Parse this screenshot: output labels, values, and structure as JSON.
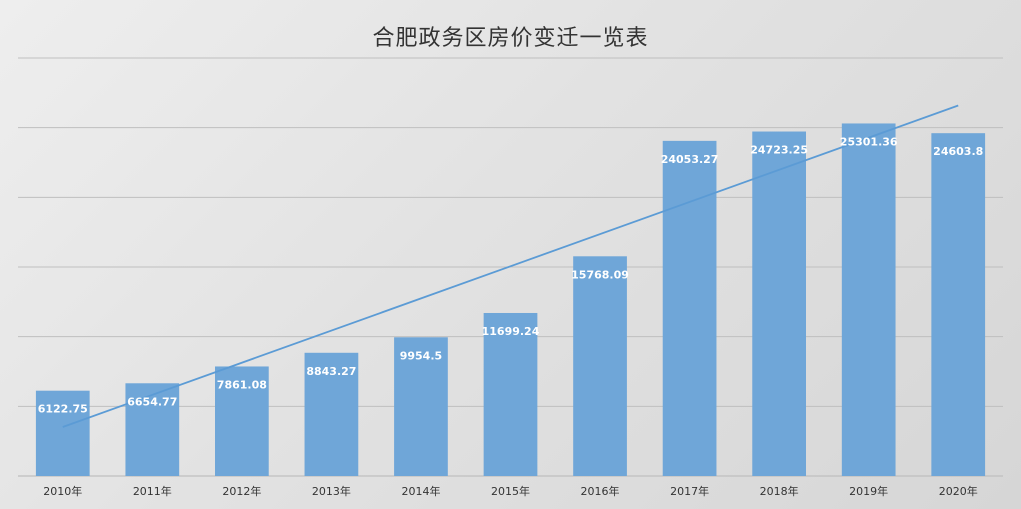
{
  "chart_data": {
    "type": "bar",
    "title": "合肥政务区房价变迁一览表",
    "categories": [
      "2010年",
      "2011年",
      "2012年",
      "2013年",
      "2014年",
      "2015年",
      "2016年",
      "2017年",
      "2018年",
      "2019年",
      "2020年"
    ],
    "values": [
      6122.75,
      6654.77,
      7861.08,
      8843.27,
      9954.5,
      11699.24,
      15768.09,
      24053.27,
      24723.25,
      25301.36,
      24603.8
    ],
    "data_labels": [
      "6122.75",
      "6654.77",
      "7861.08",
      "8843.27",
      "9954.5",
      "11699.24",
      "15768.09",
      "24053.27",
      "24723.25",
      "25301.36",
      "24603.8"
    ],
    "ylim": [
      0,
      30000
    ],
    "trendline": "linear",
    "grid": true,
    "y_tick_labels_visible": false,
    "colors": {
      "bar": "#6fa6d8",
      "trendline": "#5b9bd5",
      "data_label": "#ffffff",
      "grid": "#bfbfbf",
      "axis_label": "#333333"
    }
  }
}
